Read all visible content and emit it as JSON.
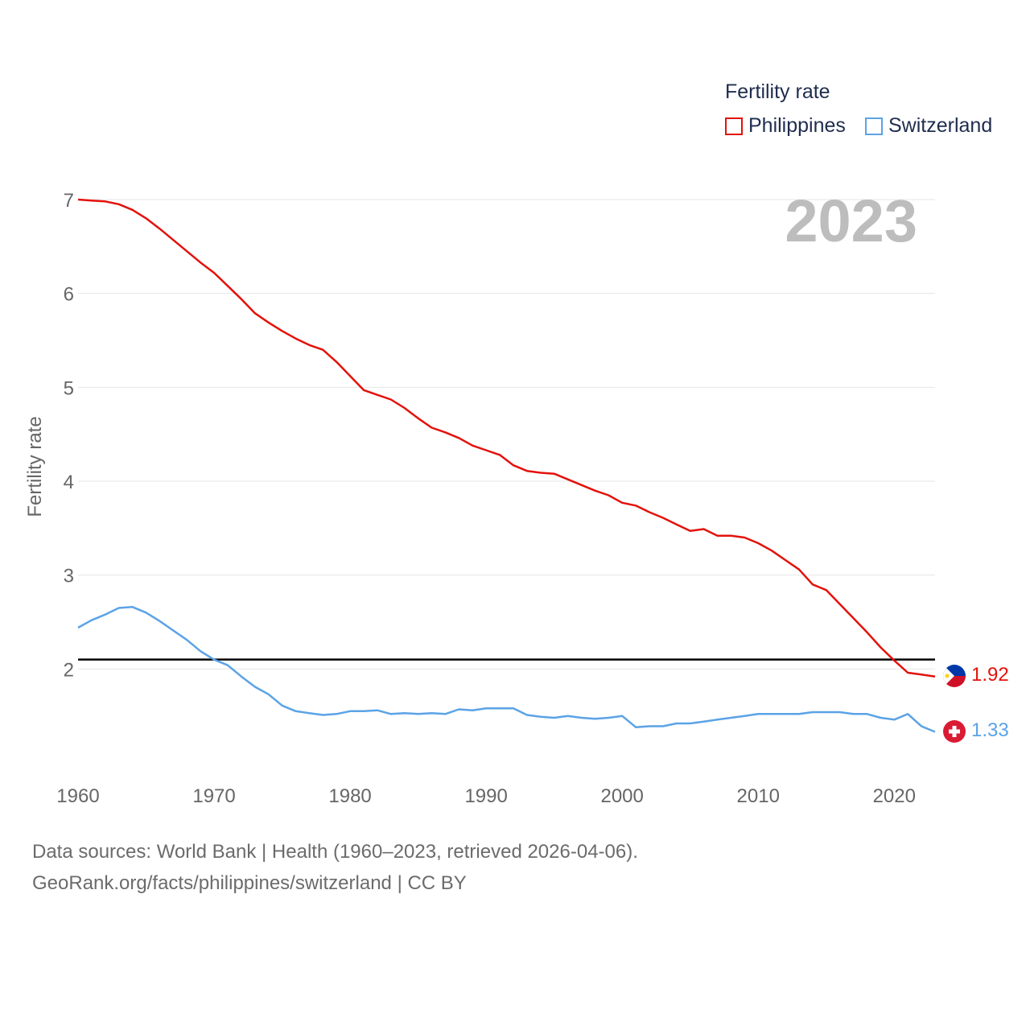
{
  "legend": {
    "title": "Fertility rate",
    "items": [
      {
        "label": "Philippines",
        "color": "#e3120b"
      },
      {
        "label": "Switzerland",
        "color": "#5ba3e6"
      }
    ]
  },
  "year_display": "2023",
  "footer": {
    "line1": "Data sources: World Bank | Health (1960–2023, retrieved 2026-04-06).",
    "line2": "GeoRank.org/facts/philippines/switzerland | CC BY"
  },
  "end_labels": {
    "philippines": "1.92",
    "switzerland": "1.33"
  },
  "flags": {
    "philippines": "philippines-flag-icon",
    "switzerland": "switzerland-flag-icon"
  },
  "chart_data": {
    "type": "line",
    "title": "Fertility rate",
    "xlabel": "",
    "ylabel": "Fertility rate",
    "xlim": [
      1960,
      2023
    ],
    "ylim": [
      1.0,
      7.0
    ],
    "xticks": [
      1960,
      1970,
      1980,
      1990,
      2000,
      2010,
      2020
    ],
    "yticks": [
      2,
      3,
      4,
      5,
      6,
      7
    ],
    "reference_line": 2.1,
    "x": [
      1960,
      1961,
      1962,
      1963,
      1964,
      1965,
      1966,
      1967,
      1968,
      1969,
      1970,
      1971,
      1972,
      1973,
      1974,
      1975,
      1976,
      1977,
      1978,
      1979,
      1980,
      1981,
      1982,
      1983,
      1984,
      1985,
      1986,
      1987,
      1988,
      1989,
      1990,
      1991,
      1992,
      1993,
      1994,
      1995,
      1996,
      1997,
      1998,
      1999,
      2000,
      2001,
      2002,
      2003,
      2004,
      2005,
      2006,
      2007,
      2008,
      2009,
      2010,
      2011,
      2012,
      2013,
      2014,
      2015,
      2016,
      2017,
      2018,
      2019,
      2020,
      2021,
      2022,
      2023
    ],
    "series": [
      {
        "name": "Philippines",
        "color": "#e3120b",
        "values": [
          7.0,
          6.99,
          6.98,
          6.95,
          6.89,
          6.8,
          6.69,
          6.57,
          6.45,
          6.33,
          6.22,
          6.08,
          5.94,
          5.79,
          5.69,
          5.6,
          5.52,
          5.45,
          5.4,
          5.27,
          5.12,
          4.97,
          4.92,
          4.87,
          4.78,
          4.67,
          4.57,
          4.52,
          4.46,
          4.38,
          4.33,
          4.28,
          4.17,
          4.11,
          4.09,
          4.08,
          4.02,
          3.96,
          3.9,
          3.85,
          3.77,
          3.74,
          3.67,
          3.61,
          3.54,
          3.47,
          3.49,
          3.42,
          3.42,
          3.4,
          3.34,
          3.26,
          3.16,
          3.06,
          2.9,
          2.84,
          2.69,
          2.54,
          2.39,
          2.23,
          2.09,
          1.96,
          1.94,
          1.92
        ]
      },
      {
        "name": "Switzerland",
        "color": "#5ba3e6",
        "values": [
          2.44,
          2.52,
          2.58,
          2.65,
          2.66,
          2.6,
          2.51,
          2.41,
          2.31,
          2.19,
          2.1,
          2.04,
          1.92,
          1.81,
          1.73,
          1.61,
          1.55,
          1.53,
          1.51,
          1.52,
          1.55,
          1.55,
          1.56,
          1.52,
          1.53,
          1.52,
          1.53,
          1.52,
          1.57,
          1.56,
          1.58,
          1.58,
          1.58,
          1.51,
          1.49,
          1.48,
          1.5,
          1.48,
          1.47,
          1.48,
          1.5,
          1.38,
          1.39,
          1.39,
          1.42,
          1.42,
          1.44,
          1.46,
          1.48,
          1.5,
          1.52,
          1.52,
          1.52,
          1.52,
          1.54,
          1.54,
          1.54,
          1.52,
          1.52,
          1.48,
          1.46,
          1.52,
          1.39,
          1.33
        ]
      }
    ]
  }
}
